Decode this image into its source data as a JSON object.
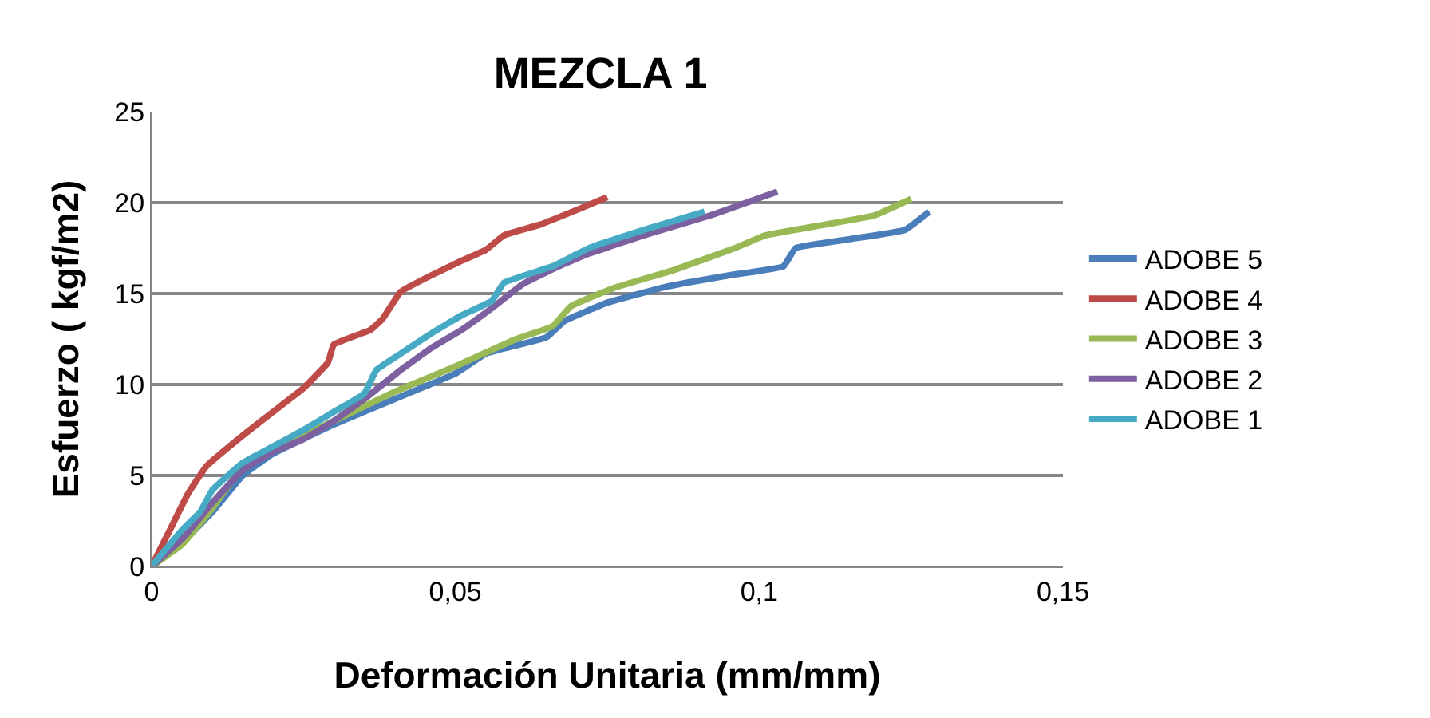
{
  "chart_data": {
    "type": "line",
    "title": "MEZCLA 1",
    "xlabel": "Deformación Unitaria (mm/mm)",
    "ylabel": "Esfuerzo ( kgf/m2)",
    "xlim": [
      0,
      0.15
    ],
    "xticks": [
      0,
      {
        "value": 0.05,
        "label": "0,05"
      },
      {
        "value": 0.1,
        "label": "0,1"
      },
      {
        "value": 0.15,
        "label": "0,15"
      }
    ],
    "ylim": [
      0,
      25
    ],
    "yticks": [
      0,
      5,
      10,
      15,
      20,
      25
    ],
    "grid": "y",
    "legend": "right",
    "marker": "none",
    "line_style": "solid",
    "series": [
      {
        "name": "ADOBE 5",
        "color": "#4a7ebb",
        "x": [
          0,
          0.005,
          0.01,
          0.015,
          0.02,
          0.03,
          0.04,
          0.05,
          0.055,
          0.065,
          0.068,
          0.075,
          0.085,
          0.095,
          0.104,
          0.106,
          0.115,
          0.124,
          0.128
        ],
        "values": [
          0,
          1.3,
          3,
          5,
          6.2,
          7.8,
          9.2,
          10.6,
          11.7,
          12.6,
          13.5,
          14.5,
          15.4,
          16,
          16.5,
          17.5,
          18,
          18.5,
          19.5
        ]
      },
      {
        "name": "ADOBE 4",
        "color": "#be4b48",
        "x": [
          0,
          0.003,
          0.006,
          0.009,
          0.015,
          0.02,
          0.025,
          0.029,
          0.03,
          0.036,
          0.038,
          0.041,
          0.046,
          0.051,
          0.055,
          0.058,
          0.064,
          0.07,
          0.075
        ],
        "values": [
          0,
          2,
          4,
          5.5,
          7.2,
          8.5,
          9.8,
          11.2,
          12.2,
          13,
          13.6,
          15.1,
          16,
          16.8,
          17.4,
          18.2,
          18.8,
          19.6,
          20.3
        ]
      },
      {
        "name": "ADOBE 3",
        "color": "#98b954",
        "x": [
          0,
          0.005,
          0.01,
          0.015,
          0.02,
          0.03,
          0.04,
          0.05,
          0.06,
          0.066,
          0.069,
          0.076,
          0.086,
          0.096,
          0.101,
          0.111,
          0.119,
          0.125
        ],
        "values": [
          0,
          1.2,
          3.2,
          5.5,
          6.4,
          8,
          9.6,
          11,
          12.5,
          13.2,
          14.3,
          15.3,
          16.3,
          17.5,
          18.2,
          18.8,
          19.3,
          20.2
        ]
      },
      {
        "name": "ADOBE 2",
        "color": "#7d60a0",
        "x": [
          0,
          0.005,
          0.01,
          0.015,
          0.02,
          0.025,
          0.03,
          0.035,
          0.041,
          0.046,
          0.051,
          0.056,
          0.061,
          0.067,
          0.072,
          0.082,
          0.092,
          0.103
        ],
        "values": [
          0,
          1.5,
          3.5,
          5.3,
          6.3,
          7,
          8,
          9.2,
          10.8,
          12,
          13,
          14.2,
          15.5,
          16.5,
          17.2,
          18.3,
          19.3,
          20.6
        ]
      },
      {
        "name": "ADOBE 1",
        "color": "#46aac5",
        "x": [
          0,
          0.005,
          0.008,
          0.01,
          0.015,
          0.02,
          0.025,
          0.03,
          0.035,
          0.037,
          0.041,
          0.046,
          0.051,
          0.056,
          0.058,
          0.066,
          0.072,
          0.082,
          0.091
        ],
        "values": [
          0,
          2,
          3,
          4.2,
          5.7,
          6.6,
          7.5,
          8.5,
          9.5,
          10.8,
          11.7,
          12.8,
          13.8,
          14.6,
          15.6,
          16.5,
          17.5,
          18.6,
          19.5
        ]
      }
    ]
  }
}
